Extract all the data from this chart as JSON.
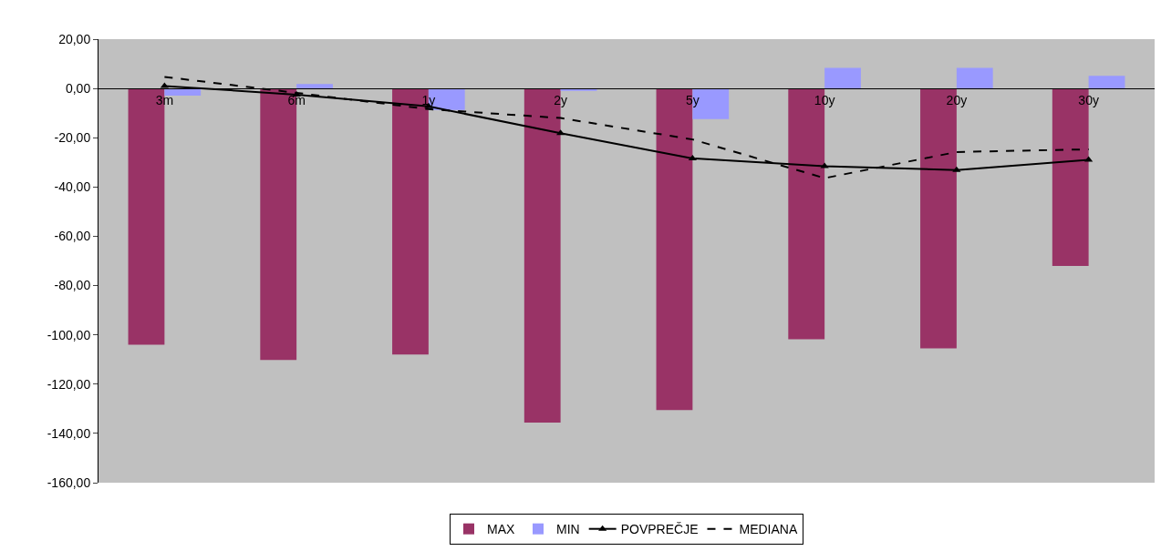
{
  "chart_data": {
    "type": "bar",
    "categories": [
      "3m",
      "6m",
      "1y",
      "2y",
      "5y",
      "10y",
      "20y",
      "30y"
    ],
    "series": [
      {
        "name": "MAX",
        "color": "#993366",
        "values": [
          -104,
          -110.2,
          -108,
          -135.6,
          -130.5,
          -101.8,
          -105.5,
          -72
        ]
      },
      {
        "name": "MIN",
        "color": "#9999ff",
        "values": [
          -2.9,
          1.8,
          -8.7,
          -1,
          -12.4,
          8.4,
          8.4,
          5.1
        ]
      },
      {
        "name": "POVPREČJE",
        "type": "line",
        "color": "#000000",
        "marker": "triangle",
        "line_style": "solid",
        "values": [
          1,
          -2.5,
          -7.3,
          -18.2,
          -28.4,
          -31.6,
          -33.1,
          -29
        ]
      },
      {
        "name": "MEDIANA",
        "type": "line",
        "color": "#000000",
        "marker": "none",
        "line_style": "dashed",
        "values": [
          4.7,
          -1.8,
          -8.4,
          -12,
          -20.7,
          -36.4,
          -25.8,
          -24.7
        ]
      }
    ],
    "ylim": [
      -160,
      20
    ],
    "yticks": [
      {
        "value": -160,
        "label": "-160,00"
      },
      {
        "value": -140,
        "label": "-140,00"
      },
      {
        "value": -120,
        "label": "-120,00"
      },
      {
        "value": -100,
        "label": "-100,00"
      },
      {
        "value": -80,
        "label": "-80,00"
      },
      {
        "value": -60,
        "label": "-60,00"
      },
      {
        "value": -40,
        "label": "-40,00"
      },
      {
        "value": -20,
        "label": "-20,00"
      },
      {
        "value": 0,
        "label": "0,00"
      },
      {
        "value": 20,
        "label": "20,00"
      }
    ],
    "grid": false,
    "legend": "bottom"
  }
}
